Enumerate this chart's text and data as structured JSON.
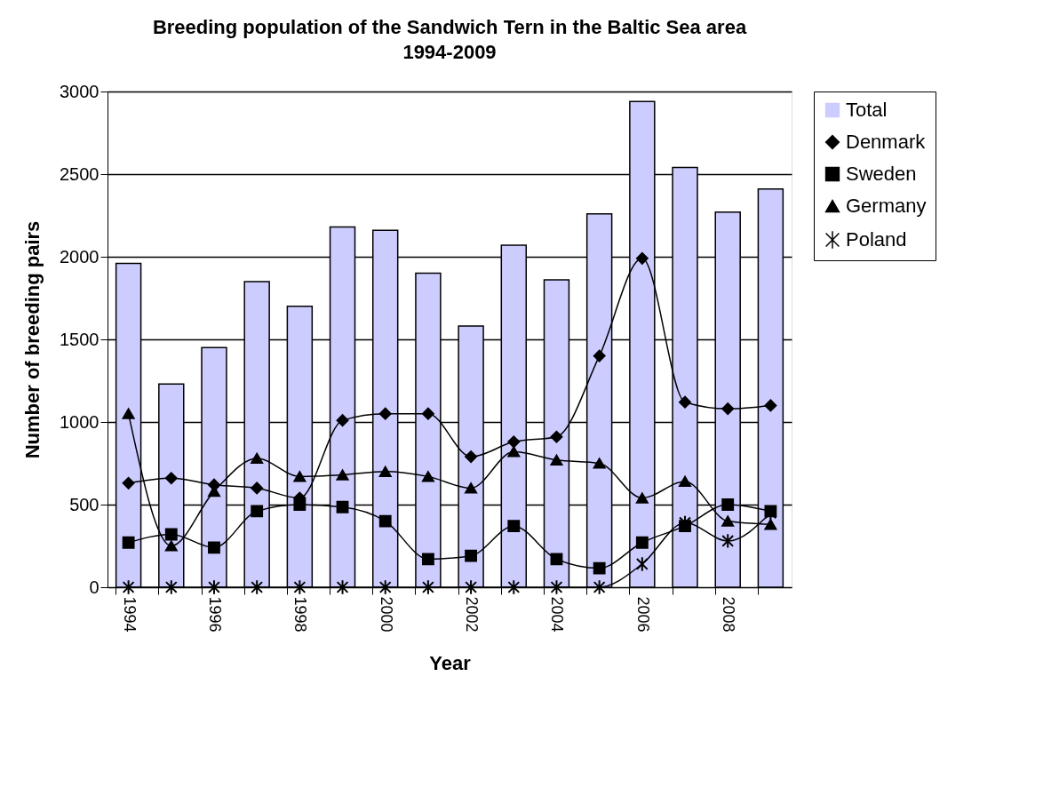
{
  "chart_data": {
    "type": "bar",
    "title": "Breeding population of the Sandwich Tern in the Baltic Sea area",
    "subtitle": "1994-2009",
    "xlabel": "Year",
    "ylabel": "Number of breeding pairs",
    "categories": [
      "1994",
      null,
      "1996",
      null,
      "1998",
      null,
      "2000",
      null,
      "2002",
      null,
      "2004",
      null,
      "2006",
      null,
      "2008",
      null
    ],
    "ylim": [
      0,
      3000
    ],
    "yticks": [
      0,
      500,
      1000,
      1500,
      2000,
      2500,
      3000
    ],
    "grid": "y",
    "legend": "right",
    "series": [
      {
        "name": "Total",
        "color": "#ccccff",
        "values": [
          1960,
          1230,
          1450,
          1850,
          1700,
          2180,
          2160,
          1900,
          1580,
          2070,
          1860,
          2260,
          2940,
          2540,
          2270,
          2410
        ]
      },
      {
        "name": "Denmark",
        "type": "line",
        "color": "#000000",
        "marker": "diamond",
        "values": [
          630,
          660,
          620,
          600,
          540,
          1010,
          1050,
          1050,
          790,
          880,
          910,
          1400,
          1990,
          1120,
          1080,
          1100
        ]
      },
      {
        "name": "Sweden",
        "type": "line",
        "color": "#000000",
        "marker": "square",
        "values": [
          270,
          320,
          240,
          460,
          500,
          485,
          400,
          170,
          190,
          370,
          170,
          115,
          270,
          370,
          500,
          460
        ]
      },
      {
        "name": "Germany",
        "type": "line",
        "color": "#000000",
        "marker": "triangle",
        "values": [
          1050,
          250,
          580,
          780,
          670,
          680,
          700,
          670,
          600,
          820,
          770,
          750,
          540,
          640,
          400,
          380
        ]
      },
      {
        "name": "Poland",
        "type": "line",
        "color": "#000000",
        "marker": "cross",
        "values": [
          0,
          0,
          0,
          0,
          0,
          0,
          0,
          0,
          0,
          0,
          0,
          0,
          140,
          390,
          280,
          450
        ]
      }
    ]
  }
}
